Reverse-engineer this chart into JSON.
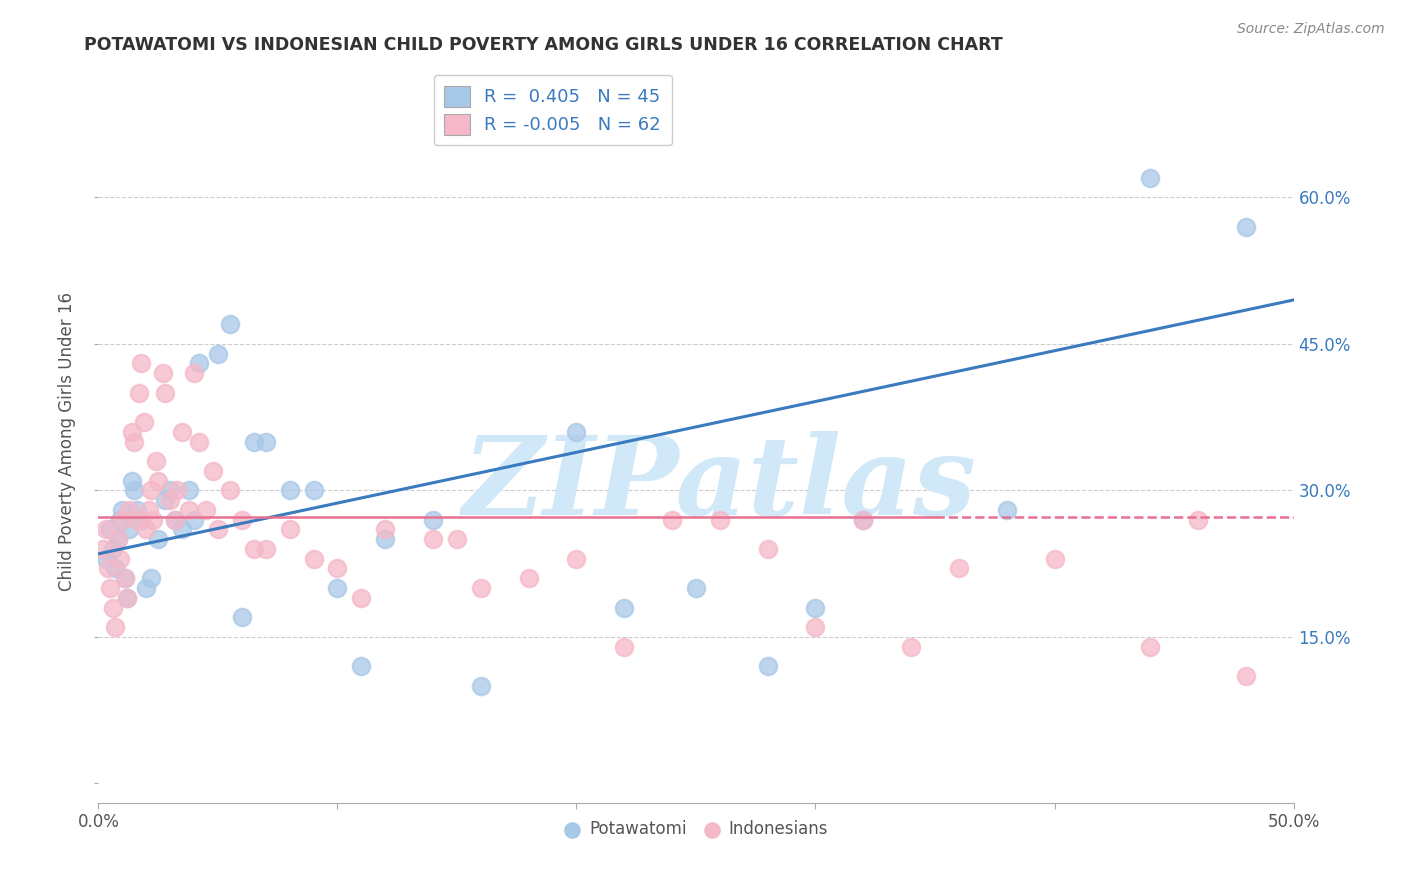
{
  "title": "POTAWATOMI VS INDONESIAN CHILD POVERTY AMONG GIRLS UNDER 16 CORRELATION CHART",
  "source": "Source: ZipAtlas.com",
  "ylabel": "Child Poverty Among Girls Under 16",
  "xlim": [
    0,
    0.5
  ],
  "ylim": [
    -0.02,
    0.72
  ],
  "xticklabels_left": "0.0%",
  "xticklabels_right": "50.0%",
  "right_yticks": [
    0.15,
    0.3,
    0.45,
    0.6
  ],
  "right_yticklabels": [
    "15.0%",
    "30.0%",
    "45.0%",
    "60.0%"
  ],
  "potawatomi_R": 0.405,
  "potawatomi_N": 45,
  "indonesian_R": -0.005,
  "indonesian_N": 62,
  "blue_scatter_color": "#a8c8e8",
  "pink_scatter_color": "#f4b8c8",
  "blue_line_color": "#3a7abf",
  "pink_line_color": "#e87090",
  "watermark": "ZIPatlas",
  "watermark_color": "#d0e8f8",
  "background_color": "#ffffff",
  "grid_color": "#cccccc",
  "title_color": "#333333",
  "source_color": "#888888",
  "legend_text_color": "#3a7abf",
  "potawatomi_x": [
    0.003,
    0.005,
    0.006,
    0.007,
    0.008,
    0.009,
    0.01,
    0.011,
    0.012,
    0.013,
    0.014,
    0.015,
    0.016,
    0.018,
    0.02,
    0.022,
    0.025,
    0.028,
    0.03,
    0.032,
    0.035,
    0.038,
    0.04,
    0.042,
    0.05,
    0.055,
    0.06,
    0.065,
    0.07,
    0.08,
    0.09,
    0.1,
    0.11,
    0.12,
    0.14,
    0.16,
    0.2,
    0.22,
    0.25,
    0.28,
    0.3,
    0.32,
    0.38,
    0.44,
    0.48
  ],
  "potawatomi_y": [
    0.23,
    0.26,
    0.24,
    0.22,
    0.25,
    0.27,
    0.28,
    0.21,
    0.19,
    0.26,
    0.31,
    0.3,
    0.28,
    0.27,
    0.2,
    0.21,
    0.25,
    0.29,
    0.3,
    0.27,
    0.26,
    0.3,
    0.27,
    0.43,
    0.44,
    0.47,
    0.17,
    0.35,
    0.35,
    0.3,
    0.3,
    0.2,
    0.12,
    0.25,
    0.27,
    0.1,
    0.36,
    0.18,
    0.2,
    0.12,
    0.18,
    0.27,
    0.28,
    0.62,
    0.57
  ],
  "indonesian_x": [
    0.002,
    0.003,
    0.004,
    0.005,
    0.006,
    0.007,
    0.008,
    0.009,
    0.01,
    0.011,
    0.012,
    0.013,
    0.014,
    0.015,
    0.016,
    0.017,
    0.018,
    0.019,
    0.02,
    0.021,
    0.022,
    0.023,
    0.024,
    0.025,
    0.027,
    0.028,
    0.03,
    0.032,
    0.033,
    0.035,
    0.038,
    0.04,
    0.042,
    0.045,
    0.048,
    0.05,
    0.055,
    0.06,
    0.065,
    0.07,
    0.08,
    0.09,
    0.1,
    0.11,
    0.12,
    0.14,
    0.15,
    0.16,
    0.18,
    0.2,
    0.22,
    0.24,
    0.26,
    0.28,
    0.3,
    0.32,
    0.34,
    0.36,
    0.4,
    0.44,
    0.46,
    0.48
  ],
  "indonesian_y": [
    0.24,
    0.26,
    0.22,
    0.2,
    0.18,
    0.16,
    0.25,
    0.23,
    0.27,
    0.21,
    0.19,
    0.28,
    0.36,
    0.35,
    0.27,
    0.4,
    0.43,
    0.37,
    0.26,
    0.28,
    0.3,
    0.27,
    0.33,
    0.31,
    0.42,
    0.4,
    0.29,
    0.27,
    0.3,
    0.36,
    0.28,
    0.42,
    0.35,
    0.28,
    0.32,
    0.26,
    0.3,
    0.27,
    0.24,
    0.24,
    0.26,
    0.23,
    0.22,
    0.19,
    0.26,
    0.25,
    0.25,
    0.2,
    0.21,
    0.23,
    0.14,
    0.27,
    0.27,
    0.24,
    0.16,
    0.27,
    0.14,
    0.22,
    0.23,
    0.14,
    0.27,
    0.11
  ]
}
